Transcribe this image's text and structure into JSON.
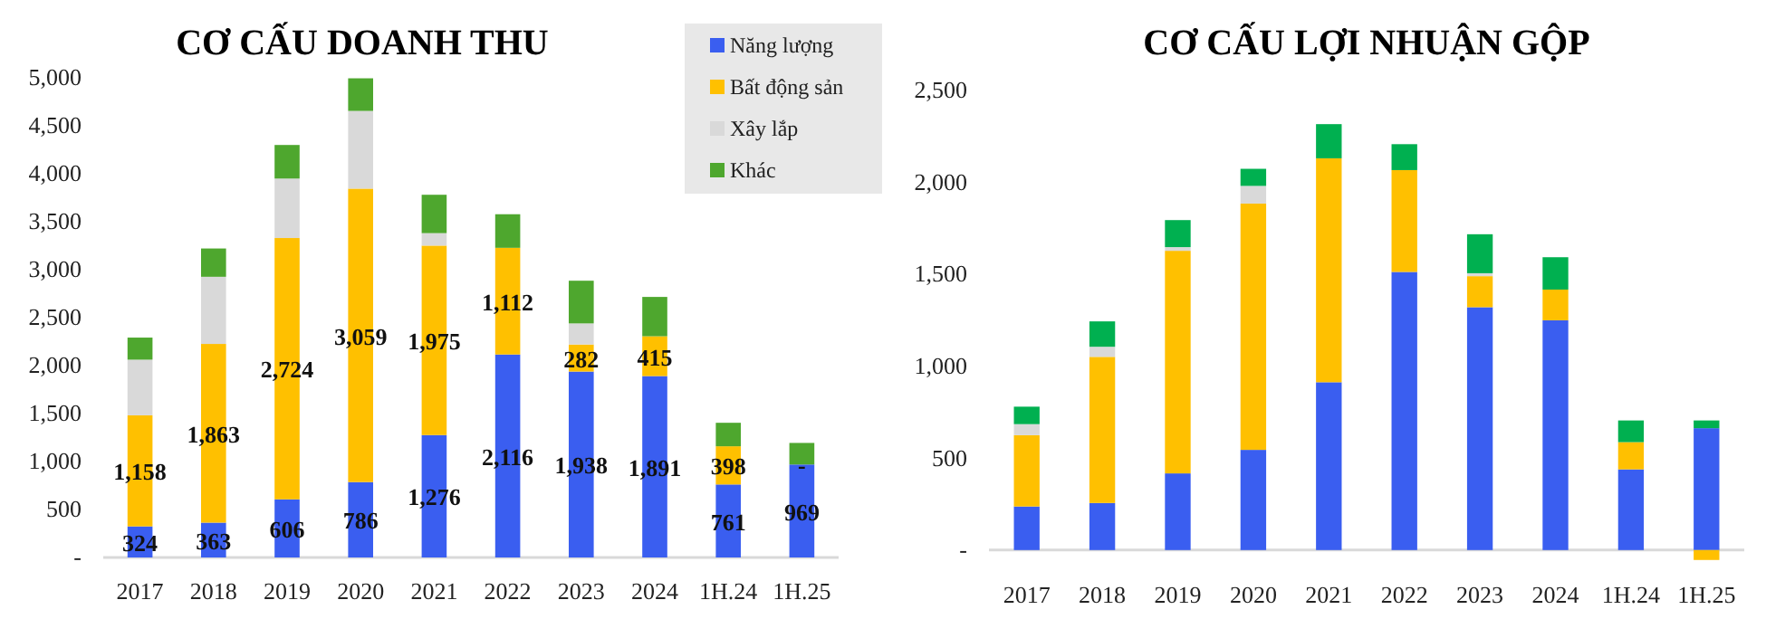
{
  "chart_data": [
    {
      "type": "bar",
      "title": "CƠ CẤU DOANH THU",
      "stacked": true,
      "legend": "top right",
      "grid": false,
      "categories": [
        "2017",
        "2018",
        "2019",
        "2020",
        "2021",
        "2022",
        "2023",
        "2024",
        "1H.24",
        "1H.25"
      ],
      "ylim": [
        0,
        5000
      ],
      "yticks": [
        {
          "value": 0,
          "label": "-"
        },
        {
          "value": 500,
          "label": "500"
        },
        {
          "value": 1000,
          "label": "1,000"
        },
        {
          "value": 1500,
          "label": "1,500"
        },
        {
          "value": 2000,
          "label": "2,000"
        },
        {
          "value": 2500,
          "label": "2,500"
        },
        {
          "value": 3000,
          "label": "3,000"
        },
        {
          "value": 3500,
          "label": "3,500"
        },
        {
          "value": 4000,
          "label": "4,000"
        },
        {
          "value": 4500,
          "label": "4,500"
        },
        {
          "value": 5000,
          "label": "5,000"
        }
      ],
      "series": [
        {
          "name": "Năng lượng",
          "color": "#3a5ef0",
          "values": [
            324,
            363,
            606,
            786,
            1276,
            2116,
            1938,
            1891,
            761,
            969
          ],
          "value_labels": [
            "324",
            "363",
            "606",
            "786",
            "1,276",
            "2,116",
            "1,938",
            "1,891",
            "761",
            "969"
          ]
        },
        {
          "name": "Bất động sản",
          "color": "#ffc000",
          "values": [
            1158,
            1863,
            2724,
            3059,
            1975,
            1112,
            282,
            415,
            398,
            0
          ],
          "value_labels": [
            "1,158",
            "1,863",
            "2,724",
            "3,059",
            "1,975",
            "1,112",
            "282",
            "415",
            "398",
            "-"
          ]
        },
        {
          "name": "Xây lắp",
          "color": "#d9d9d9",
          "values": [
            580,
            700,
            620,
            810,
            130,
            null,
            220,
            0,
            0,
            0
          ]
        },
        {
          "name": "Khác",
          "color": "#4ea72e",
          "values": [
            230,
            295,
            350,
            340,
            400,
            350,
            445,
            410,
            245,
            225
          ]
        }
      ]
    },
    {
      "type": "bar",
      "title": "CƠ CẤU LỢI NHUẬN GỘP",
      "stacked": true,
      "grid": false,
      "categories": [
        "2017",
        "2018",
        "2019",
        "2020",
        "2021",
        "2022",
        "2023",
        "2024",
        "1H.24",
        "1H.25"
      ],
      "ylim": [
        -60,
        2500
      ],
      "yticks": [
        {
          "value": 0,
          "label": "-"
        },
        {
          "value": 500,
          "label": "500"
        },
        {
          "value": 1000,
          "label": "1,000"
        },
        {
          "value": 1500,
          "label": "1,500"
        },
        {
          "value": 2000,
          "label": "2,000"
        },
        {
          "value": 2500,
          "label": "2,500"
        }
      ],
      "series": [
        {
          "color": "#3a5ef0",
          "values": [
            237,
            256,
            417,
            545,
            913,
            1513,
            1321,
            1250,
            439,
            663
          ]
        },
        {
          "color": "#ffc000",
          "values": [
            388,
            795,
            1211,
            1340,
            1218,
            554,
            169,
            167,
            148,
            -54
          ]
        },
        {
          "color": "#d9d9d9",
          "values": [
            60,
            55,
            20,
            96,
            0,
            0,
            16,
            0,
            0,
            0
          ]
        },
        {
          "color": "#00b050",
          "values": [
            95,
            138,
            147,
            93,
            186,
            141,
            212,
            176,
            118,
            42
          ]
        }
      ]
    }
  ]
}
